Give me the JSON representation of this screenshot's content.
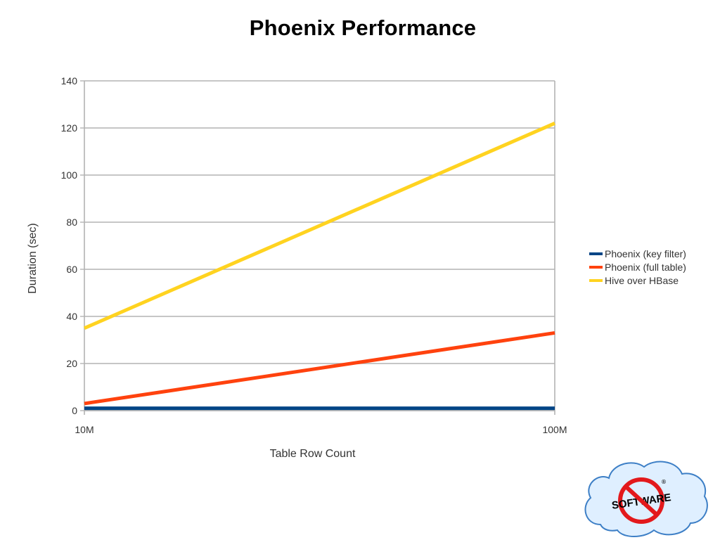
{
  "slide": {
    "title": "Phoenix Performance"
  },
  "chart_data": {
    "type": "line",
    "categories": [
      "10M",
      "100M"
    ],
    "series": [
      {
        "name": "Phoenix (key filter)",
        "values": [
          1,
          1
        ],
        "color": "#004586"
      },
      {
        "name": "Phoenix (full table)",
        "values": [
          3,
          33
        ],
        "color": "#ff420e"
      },
      {
        "name": "Hive over HBase",
        "values": [
          35,
          122
        ],
        "color": "#ffd320"
      }
    ],
    "xlabel": "Table Row Count",
    "ylabel": "Duration (sec)",
    "ylim": [
      0,
      140
    ],
    "yticks": [
      0,
      20,
      40,
      60,
      80,
      100,
      120,
      140
    ],
    "grid": true,
    "legend_position": "right"
  },
  "logo": {
    "name": "no-software-logo",
    "text": "SOFTWARE",
    "mark": "®",
    "colors": {
      "cloud": "#dfefff",
      "cloud_outline": "#3d7fc6",
      "prohibition": "#e3191c",
      "badge_text": "#000000"
    }
  }
}
